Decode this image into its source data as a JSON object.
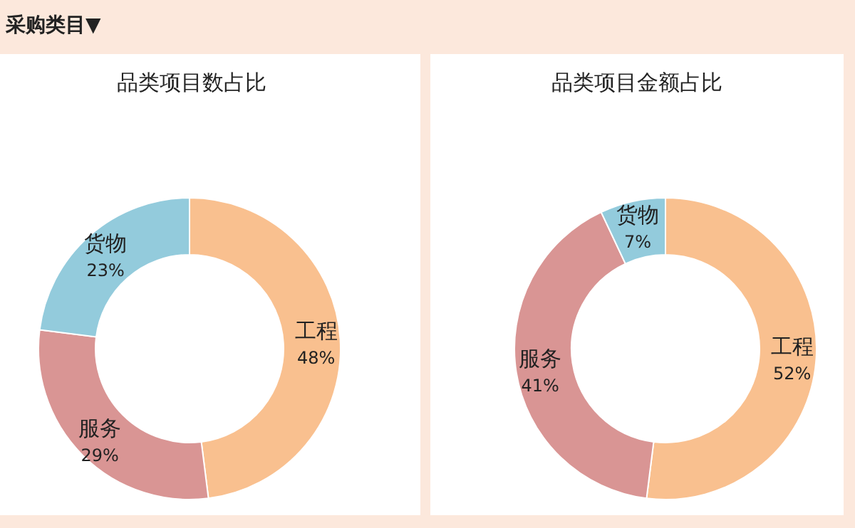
{
  "chart_data": [
    {
      "type": "donut",
      "title": "品类项目数占比",
      "annotations": [
        "采购类目▼"
      ],
      "categories": [
        "工程",
        "服务",
        "货物"
      ],
      "values": [
        48,
        29,
        23
      ],
      "value_labels": [
        "48%",
        "29%",
        "23%"
      ],
      "colors": [
        "#f9c08f",
        "#d99594",
        "#93cbdc"
      ],
      "legend": false
    },
    {
      "type": "donut",
      "title": "品类项目金额占比",
      "categories": [
        "工程",
        "服务",
        "货物"
      ],
      "values": [
        52,
        41,
        7
      ],
      "value_labels": [
        "52%",
        "41%",
        "7%"
      ],
      "colors": [
        "#f9c08f",
        "#d99594",
        "#93cbdc"
      ],
      "legend": false
    }
  ]
}
